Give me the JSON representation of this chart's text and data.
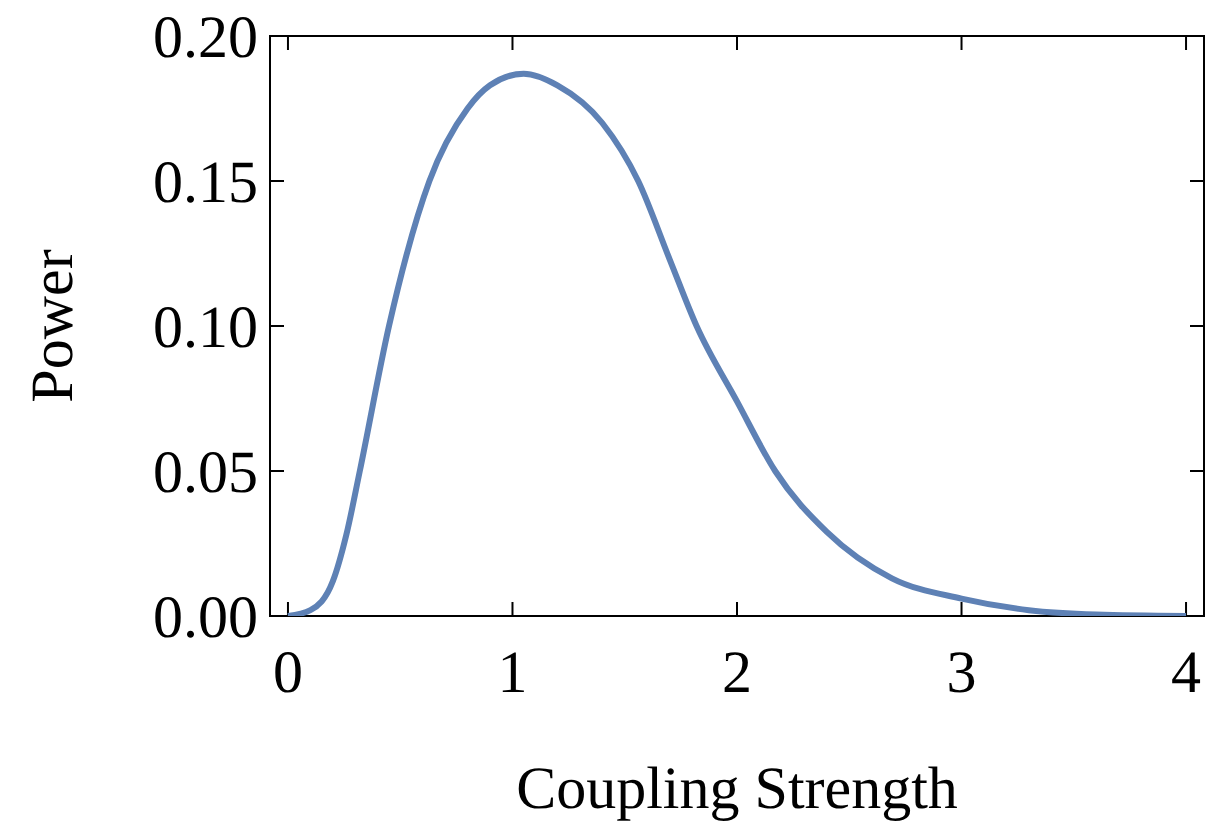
{
  "chart_data": {
    "type": "line",
    "xlabel": "Coupling Strength",
    "ylabel": "Power",
    "xlim": [
      -0.08,
      4.08
    ],
    "ylim": [
      0,
      0.2
    ],
    "xticks": [
      0,
      1,
      2,
      3,
      4
    ],
    "yticks": [
      {
        "value": 0,
        "label": "0.00"
      },
      {
        "value": 0.05,
        "label": "0.05"
      },
      {
        "value": 0.1,
        "label": "0.10"
      },
      {
        "value": 0.15,
        "label": "0.15"
      },
      {
        "value": 0.2,
        "label": "0.20"
      }
    ],
    "grid": false,
    "line_style": "solid",
    "marker": "none",
    "series": [
      {
        "color": "#5e81b5",
        "x": [
          0,
          0.1,
          0.2,
          0.26,
          0.32,
          0.45,
          0.63,
          0.8,
          0.9,
          1.05,
          1.2,
          1.4,
          1.56,
          1.7,
          1.82,
          2.0,
          2.17,
          2.4,
          2.69,
          3.0,
          3.3,
          3.6,
          4.0
        ],
        "values": [
          0,
          0.002,
          0.012,
          0.028,
          0.05,
          0.1,
          0.15,
          0.175,
          0.183,
          0.187,
          0.183,
          0.17,
          0.15,
          0.123,
          0.1,
          0.074,
          0.05,
          0.029,
          0.013,
          0.006,
          0.002,
          0.0005,
          0
        ]
      }
    ]
  }
}
